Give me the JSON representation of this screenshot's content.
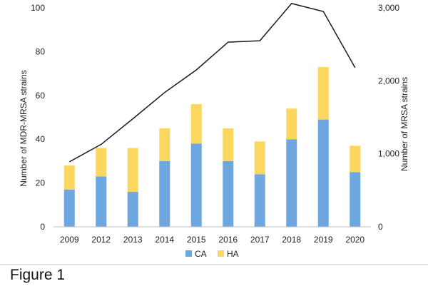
{
  "chart_data": {
    "type": "bar",
    "stacked": true,
    "categories": [
      "2009",
      "2012",
      "2013",
      "2014",
      "2015",
      "2016",
      "2017",
      "2018",
      "2019",
      "2020"
    ],
    "series": [
      {
        "name": "CA",
        "axis": "left",
        "type": "bar",
        "color": "#6ea6e0",
        "values": [
          17,
          23,
          16,
          30,
          38,
          30,
          24,
          40,
          49,
          25
        ]
      },
      {
        "name": "HA",
        "axis": "left",
        "type": "bar",
        "color": "#fcd75f",
        "values": [
          11,
          13,
          20,
          15,
          18,
          15,
          15,
          14,
          24,
          12
        ]
      },
      {
        "axis": "right",
        "type": "line",
        "color": "#1a1a1a",
        "values": [
          890,
          1130,
          1480,
          1840,
          2150,
          2530,
          2550,
          3060,
          2950,
          2180
        ]
      }
    ],
    "ylabel": "Number of MDR-MRSA strains",
    "y2label": "Number of MRSA strains",
    "ylim": [
      0,
      100
    ],
    "y2lim": [
      0,
      3000
    ],
    "yticks": [
      "0",
      "20",
      "40",
      "60",
      "80",
      "100"
    ],
    "y2ticks": [
      "0",
      "1,000",
      "2,000",
      "3,000"
    ],
    "grid": false,
    "legend_position": "bottom"
  },
  "caption": "Figure 1"
}
